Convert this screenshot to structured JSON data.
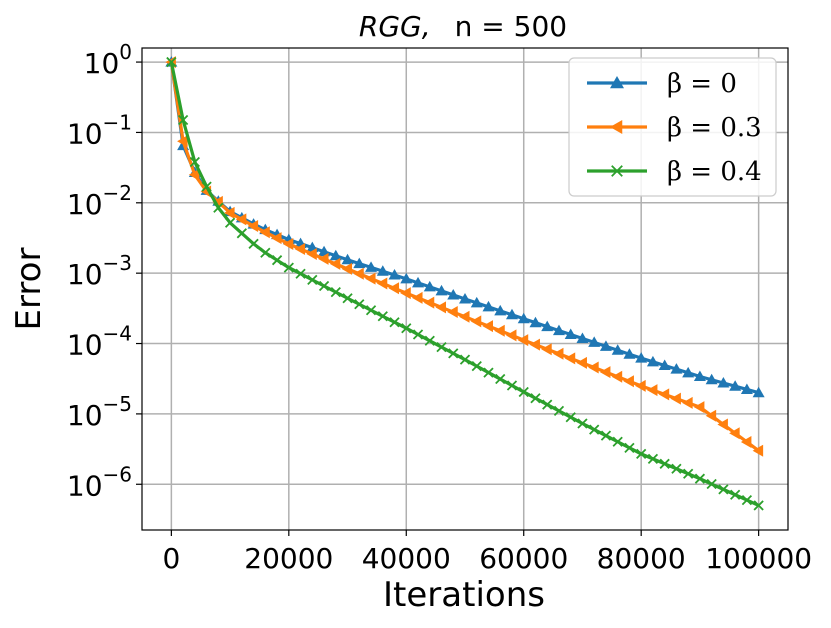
{
  "chart_data": {
    "type": "line",
    "title_italic": "RGG,",
    "title_rest": "n = 500",
    "xlabel": "Iterations",
    "ylabel": "Error",
    "xlim": [
      -5000,
      105000
    ],
    "ylim_log10": [
      -6.65,
      0.2
    ],
    "yscale": "log",
    "grid": true,
    "legend_position": "top-right",
    "x_ticks": [
      0,
      20000,
      40000,
      60000,
      80000,
      100000
    ],
    "x_tick_labels": [
      "0",
      "20000",
      "40000",
      "60000",
      "80000",
      "100000"
    ],
    "y_ticks_exponents": [
      0,
      -1,
      -2,
      -3,
      -4,
      -5,
      -6
    ],
    "y_tick_base": "10",
    "y_tick_exponent_labels": [
      "0",
      "−1",
      "−2",
      "−3",
      "−4",
      "−5",
      "−6"
    ],
    "series": [
      {
        "name": "β = 0",
        "legend_label": "β = 0",
        "color": "#1f77b4",
        "marker": "triangle-up",
        "x": [
          0,
          2000,
          4000,
          6000,
          8000,
          10000,
          15000,
          20000,
          30000,
          40000,
          50000,
          60000,
          70000,
          80000,
          90000,
          100000
        ],
        "y": [
          1.0,
          0.065,
          0.027,
          0.015,
          0.0105,
          0.0075,
          0.0045,
          0.003,
          0.00155,
          0.00083,
          0.00043,
          0.000225,
          0.000118,
          6.2e-05,
          3.4e-05,
          2e-05
        ]
      },
      {
        "name": "β = 0.3",
        "legend_label": "β = 0.3",
        "color": "#ff7f0e",
        "marker": "triangle-left",
        "x": [
          0,
          2000,
          4000,
          6000,
          8000,
          10000,
          15000,
          20000,
          30000,
          40000,
          50000,
          60000,
          70000,
          80000,
          90000,
          100000
        ],
        "y": [
          1.0,
          0.075,
          0.025,
          0.0145,
          0.0103,
          0.0072,
          0.0042,
          0.0026,
          0.00115,
          0.00052,
          0.00024,
          0.000112,
          5.3e-05,
          2.5e-05,
          1.25e-05,
          3e-06
        ]
      },
      {
        "name": "β = 0.4",
        "legend_label": "β = 0.4",
        "color": "#2ca02c",
        "marker": "x",
        "x": [
          0,
          2000,
          4000,
          6000,
          8000,
          10000,
          15000,
          20000,
          30000,
          40000,
          50000,
          60000,
          70000,
          80000,
          90000,
          100000
        ],
        "y": [
          1.0,
          0.15,
          0.038,
          0.017,
          0.0085,
          0.0052,
          0.0022,
          0.0012,
          0.00044,
          0.000165,
          5.9e-05,
          2.05e-05,
          7.3e-06,
          2.7e-06,
          1.2e-06,
          5e-07
        ]
      }
    ]
  }
}
